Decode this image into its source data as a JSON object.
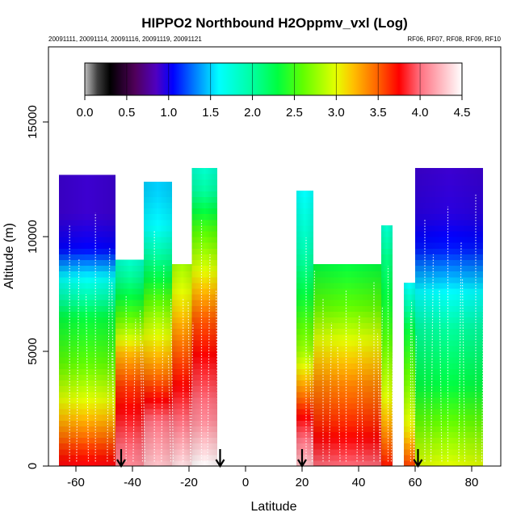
{
  "chart_data": {
    "type": "heatmap",
    "title": "HIPPO2 Northbound H2Oppmv_vxl (Log)",
    "subtitle_left": "20091111, 20091114, 20091116, 20091119, 20091121",
    "subtitle_right": "RF06, RF07, RF08, RF09, RF10",
    "xlabel": "Latitude",
    "ylabel": "Altitude (m)",
    "xlim": [
      -72,
      90
    ],
    "ylim": [
      0,
      18000
    ],
    "xticks": [
      -60,
      -40,
      -20,
      0,
      20,
      40,
      60,
      80
    ],
    "yticks": [
      0,
      5000,
      10000,
      15000
    ],
    "colorbar": {
      "min": 0.0,
      "max": 4.5,
      "ticks": [
        0.0,
        0.5,
        1.0,
        1.5,
        2.0,
        2.5,
        3.0,
        3.5,
        4.0,
        4.5
      ],
      "stops": [
        {
          "value": 0.0,
          "color": "#bfbfbf"
        },
        {
          "value": 0.15,
          "color": "#404040"
        },
        {
          "value": 0.3,
          "color": "#000000"
        },
        {
          "value": 0.6,
          "color": "#50005a"
        },
        {
          "value": 0.85,
          "color": "#5000c0"
        },
        {
          "value": 1.05,
          "color": "#0000ff"
        },
        {
          "value": 1.3,
          "color": "#0078ff"
        },
        {
          "value": 1.6,
          "color": "#00ffff"
        },
        {
          "value": 2.0,
          "color": "#00ffa0"
        },
        {
          "value": 2.3,
          "color": "#00ff40"
        },
        {
          "value": 2.6,
          "color": "#60ff00"
        },
        {
          "value": 3.0,
          "color": "#e6ff00"
        },
        {
          "value": 3.2,
          "color": "#ffc000"
        },
        {
          "value": 3.5,
          "color": "#ff6000"
        },
        {
          "value": 3.75,
          "color": "#ff0000"
        },
        {
          "value": 4.0,
          "color": "#ff7080"
        },
        {
          "value": 4.5,
          "color": "#ffffff"
        }
      ]
    },
    "flight_markers_lat": [
      -44,
      -9,
      20,
      61
    ],
    "profiles": [
      {
        "name": "southern-ocean-profile",
        "lat": [
          -66,
          -46
        ],
        "top_alt": 12700,
        "levels": [
          [
            0,
            3.8
          ],
          [
            800,
            3.6
          ],
          [
            2500,
            3.1
          ],
          [
            4500,
            2.6
          ],
          [
            6500,
            2.3
          ],
          [
            8000,
            1.7
          ],
          [
            9500,
            1.05
          ],
          [
            11000,
            0.9
          ]
        ]
      },
      {
        "name": "southern-midlat-profile",
        "lat": [
          -46,
          -36
        ],
        "top_alt": 9000,
        "levels": [
          [
            0,
            4.1
          ],
          [
            1500,
            3.9
          ],
          [
            3500,
            3.6
          ],
          [
            5000,
            3.2
          ],
          [
            6500,
            2.6
          ],
          [
            8000,
            2.1
          ],
          [
            9000,
            1.8
          ]
        ]
      },
      {
        "name": "subtropical-tower-profile",
        "lat": [
          -36,
          -26
        ],
        "top_alt": 12400,
        "levels": [
          [
            0,
            4.3
          ],
          [
            2000,
            4.0
          ],
          [
            4500,
            3.3
          ],
          [
            6500,
            2.8
          ],
          [
            8500,
            2.2
          ],
          [
            10500,
            1.6
          ],
          [
            12000,
            1.5
          ]
        ]
      },
      {
        "name": "tropical-south-plateau-profile",
        "lat": [
          -26,
          -19
        ],
        "top_alt": 8800,
        "levels": [
          [
            0,
            4.4
          ],
          [
            2000,
            4.0
          ],
          [
            5000,
            3.5
          ],
          [
            7000,
            3.1
          ],
          [
            8800,
            2.8
          ]
        ]
      },
      {
        "name": "tropical-south-tower-profile",
        "lat": [
          -19,
          -10
        ],
        "top_alt": 13000,
        "levels": [
          [
            0,
            4.5
          ],
          [
            2000,
            4.1
          ],
          [
            4500,
            3.8
          ],
          [
            6500,
            3.5
          ],
          [
            8500,
            3.0
          ],
          [
            10500,
            2.5
          ],
          [
            12000,
            2.0
          ],
          [
            13000,
            1.8
          ]
        ]
      },
      {
        "name": "tropical-north-tower-profile",
        "lat": [
          18,
          24
        ],
        "top_alt": 12000,
        "levels": [
          [
            0,
            4.3
          ],
          [
            2000,
            3.8
          ],
          [
            5000,
            2.8
          ],
          [
            7500,
            2.3
          ],
          [
            9500,
            1.9
          ],
          [
            12000,
            1.6
          ]
        ]
      },
      {
        "name": "northern-subtropic-profile",
        "lat": [
          24,
          48
        ],
        "top_alt": 8800,
        "levels": [
          [
            0,
            4.0
          ],
          [
            1500,
            3.7
          ],
          [
            3500,
            3.4
          ],
          [
            5500,
            3.0
          ],
          [
            7000,
            2.6
          ],
          [
            8800,
            2.3
          ]
        ]
      },
      {
        "name": "northern-midlat-tower-profile",
        "lat": [
          48,
          52
        ],
        "top_alt": 10500,
        "levels": [
          [
            0,
            3.7
          ],
          [
            3000,
            3.0
          ],
          [
            6000,
            2.5
          ],
          [
            9000,
            2.1
          ],
          [
            10500,
            1.8
          ]
        ]
      },
      {
        "name": "arctic-low-profile",
        "lat": [
          56,
          60
        ],
        "top_alt": 8000,
        "levels": [
          [
            0,
            3.6
          ],
          [
            1500,
            3.1
          ],
          [
            3500,
            2.7
          ],
          [
            6000,
            2.3
          ],
          [
            8000,
            1.6
          ]
        ]
      },
      {
        "name": "arctic-high-profile",
        "lat": [
          60,
          84
        ],
        "top_alt": 13000,
        "levels": [
          [
            0,
            3.0
          ],
          [
            1500,
            2.7
          ],
          [
            3500,
            2.3
          ],
          [
            6000,
            2.0
          ],
          [
            8000,
            1.5
          ],
          [
            9500,
            1.1
          ],
          [
            11000,
            0.95
          ],
          [
            13000,
            0.9
          ]
        ]
      }
    ]
  }
}
